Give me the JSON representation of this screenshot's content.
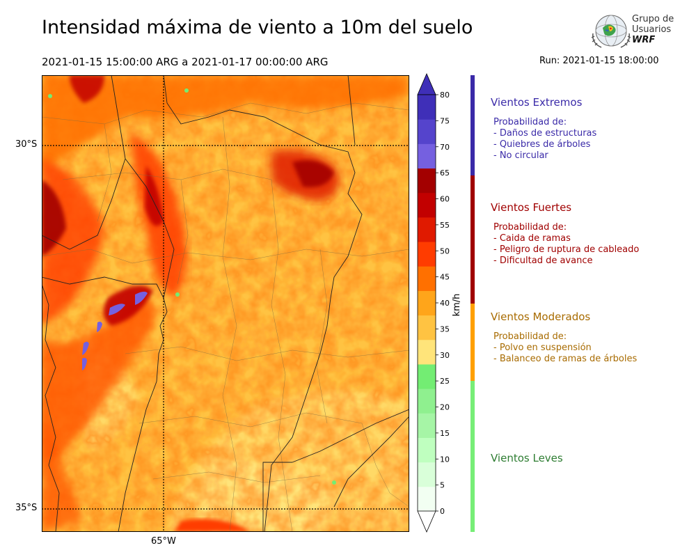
{
  "header": {
    "title": "Intensidad máxima de viento a 10m del suelo",
    "date_range": "2021-01-15 15:00:00 ARG  a  2021-01-17 00:00:00 ARG",
    "run": "Run: 2021-01-15 18:00:00"
  },
  "logo": {
    "line1": "Grupo de",
    "line2": "Usuarios",
    "line3": "WRF"
  },
  "map": {
    "lat_labels": [
      "30°S",
      "35°S"
    ],
    "lon_labels": [
      "65°W"
    ]
  },
  "colorbar": {
    "unit": "km/h",
    "ticks": [
      "0",
      "5",
      "10",
      "15",
      "20",
      "25",
      "30",
      "35",
      "40",
      "45",
      "50",
      "55",
      "60",
      "65",
      "70",
      "75",
      "80"
    ],
    "colors": [
      "#f2fff2",
      "#d9ffd9",
      "#bfffbf",
      "#a6f5a6",
      "#8ff08f",
      "#73ed73",
      "#ffe47a",
      "#ffc342",
      "#ffa51a",
      "#ff7000",
      "#ff3c00",
      "#e01a00",
      "#c20000",
      "#a30000",
      "#7560e0",
      "#5544cc",
      "#3f2fb8"
    ],
    "under_color": "#ffffff",
    "over_color": "#3f2fb8"
  },
  "categories": [
    {
      "name": "Vientos Extremos",
      "color": "#3a2aa8",
      "lines": [
        "Probabilidad de:",
        "- Daños de estructuras",
        "- Quiebres de árboles",
        "- No circular"
      ]
    },
    {
      "name": "Vientos Fuertes",
      "color": "#a00000",
      "lines": [
        "Probabilidad de:",
        "- Caida de ramas",
        "- Peligro de ruptura de cableado",
        "- Dificultad de avance"
      ]
    },
    {
      "name": "Vientos Moderados",
      "color": "#a86b00",
      "lines": [
        "Probabilidad de:",
        "- Polvo en suspensión",
        "- Balanceo de ramas de árboles"
      ]
    },
    {
      "name": "Vientos Leves",
      "color": "#2e7d32",
      "lines": []
    }
  ],
  "sidebar_colors": [
    "#3a2aa8",
    "#a00000",
    "#ffa000",
    "#77ee77"
  ]
}
